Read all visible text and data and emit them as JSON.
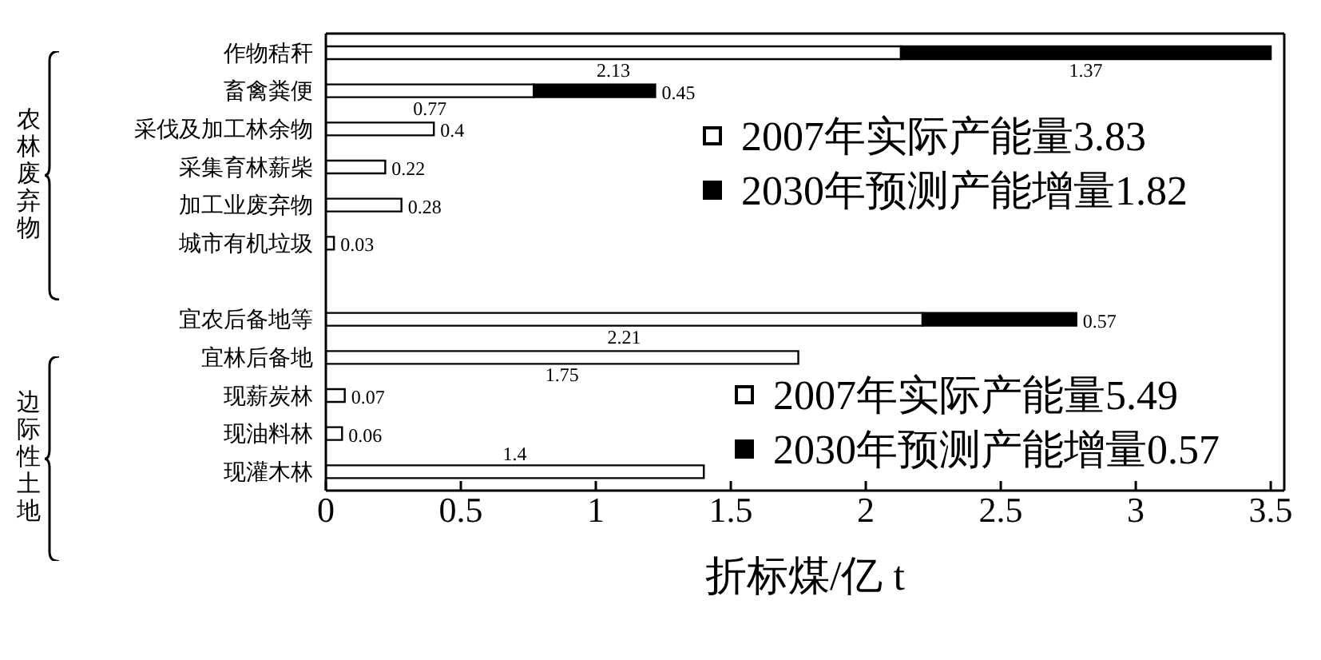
{
  "chart_data": {
    "type": "bar",
    "orientation": "horizontal",
    "stacked": true,
    "categories": [
      "作物秸秆",
      "畜禽粪便",
      "采伐及加工林余物",
      "采集育林薪柴",
      "加工业废弃物",
      "城市有机垃圾",
      null,
      "宜农后备地等",
      "宜林后备地",
      "现薪炭林",
      "现油料林",
      "现灌木林"
    ],
    "series": [
      {
        "name": "2007年实际产能量3.83",
        "color": "#ffffff",
        "values": [
          2.13,
          0.77,
          0.4,
          0.22,
          0.28,
          0.03,
          null,
          null,
          null,
          null,
          null,
          null
        ],
        "value_labels": [
          "2.13",
          "0.77",
          "0.4",
          "0.22",
          "0.28",
          "0.03",
          null,
          null,
          null,
          null,
          null,
          null
        ]
      },
      {
        "name": "2030年预测产能增量1.82",
        "color": "#000000",
        "values": [
          1.37,
          0.45,
          null,
          null,
          null,
          null,
          null,
          null,
          null,
          null,
          null,
          null
        ],
        "value_labels": [
          "1.37",
          "0.45",
          null,
          null,
          null,
          null,
          null,
          null,
          null,
          null,
          null,
          null
        ]
      },
      {
        "name": "2007年实际产能量5.49",
        "color": "#ffffff",
        "values": [
          null,
          null,
          null,
          null,
          null,
          null,
          null,
          2.21,
          1.75,
          0.07,
          0.06,
          1.4
        ],
        "value_labels": [
          null,
          null,
          null,
          null,
          null,
          null,
          null,
          "2.21",
          "1.75",
          "0.07",
          "0.06",
          "1.4"
        ]
      },
      {
        "name": "2030年预测产能增量0.57",
        "color": "#000000",
        "values": [
          null,
          null,
          null,
          null,
          null,
          null,
          null,
          0.57,
          null,
          null,
          null,
          null
        ],
        "value_labels": [
          null,
          null,
          null,
          null,
          null,
          null,
          null,
          "0.57",
          null,
          null,
          null,
          null
        ]
      }
    ],
    "xlim": [
      0,
      3.55
    ],
    "xticks": [
      0,
      0.5,
      1,
      1.5,
      2,
      2.5,
      3,
      3.5
    ],
    "xlabel": "折标煤/亿 t",
    "annotations": [
      "农林废弃物",
      "边际性土地"
    ],
    "legend": "right",
    "grid": false
  }
}
